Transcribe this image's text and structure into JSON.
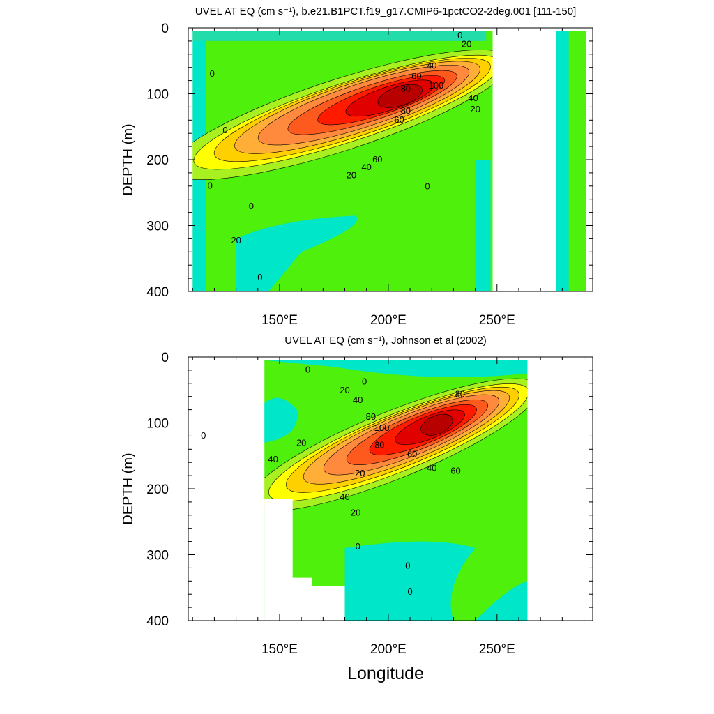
{
  "chart_data": [
    {
      "type": "contour",
      "title": "UVEL AT EQ (cm s⁻¹), b.e21.B1PCT.f19_g17.CMIP6-1pctCO2-2deg.001 [111-150]",
      "ylabel": "DEPTH (m)",
      "xlabel": "",
      "xlim": [
        108,
        294
      ],
      "ylim": [
        400,
        0
      ],
      "y_reversed": true,
      "xticks": [
        150,
        200,
        250
      ],
      "xtick_labels": [
        "150°E",
        "200°E",
        "250°E"
      ],
      "yticks": [
        0,
        100,
        200,
        300,
        400
      ],
      "ytick_labels": [
        "0",
        "100",
        "200",
        "300",
        "400"
      ],
      "contour_interval": 10,
      "core": {
        "longitude": 210,
        "depth": 100,
        "max_speed": 110
      },
      "contour_labels": [
        "0",
        "20",
        "40",
        "60",
        "80",
        "100",
        "80",
        "60",
        "40",
        "20",
        "0",
        "60",
        "40",
        "20",
        "0",
        "0",
        "0",
        "20",
        "0",
        "0"
      ],
      "missing_longitude_ranges": [
        [
          248,
          277
        ]
      ]
    },
    {
      "type": "contour",
      "title": "UVEL AT EQ (cm s⁻¹), Johnson et al (2002)",
      "ylabel": "DEPTH (m)",
      "xlabel": "Longitude",
      "xlim": [
        108,
        294
      ],
      "ylim": [
        400,
        0
      ],
      "y_reversed": true,
      "xticks": [
        150,
        200,
        250
      ],
      "xtick_labels": [
        "150°E",
        "200°E",
        "250°E"
      ],
      "yticks": [
        0,
        100,
        200,
        300,
        400
      ],
      "ytick_labels": [
        "0",
        "100",
        "200",
        "300",
        "400"
      ],
      "contour_interval": 10,
      "core": {
        "longitude": 225,
        "depth": 100,
        "max_speed": 105
      },
      "contour_labels": [
        "0",
        "0",
        "20",
        "40",
        "80",
        "100",
        "80",
        "60",
        "40",
        "20",
        "60",
        "40",
        "20",
        "0",
        "0",
        "0",
        "0",
        "20",
        "40",
        "80"
      ],
      "data_longitude_range": [
        143,
        264
      ]
    }
  ],
  "colors": {
    "scale": [
      "#00d7d7",
      "#00e6c8",
      "#22ddaa",
      "#33e070",
      "#4ef00c",
      "#a8f020",
      "#ffff00",
      "#ffd000",
      "#ffae37",
      "#ff8a3d",
      "#ff5a1e",
      "#ff1a00",
      "#e00000",
      "#b80000"
    ]
  }
}
